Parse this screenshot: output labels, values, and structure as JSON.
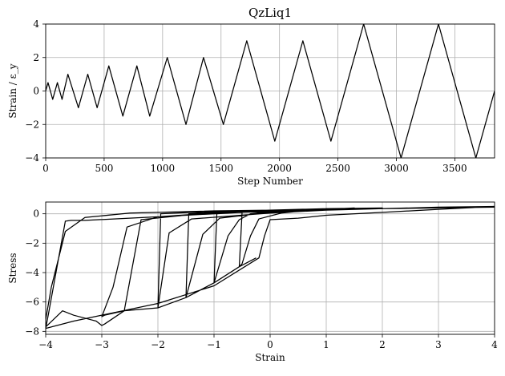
{
  "chart_data": [
    {
      "type": "line",
      "title": "QzLiq1",
      "xlabel": "Step Number",
      "ylabel": "Strain / ε_y",
      "xlim": [
        0,
        3840
      ],
      "ylim": [
        -4,
        4
      ],
      "xticks": [
        0,
        500,
        1000,
        1500,
        2000,
        2500,
        3000,
        3500
      ],
      "yticks": [
        -4,
        -2,
        0,
        2,
        4
      ],
      "grid": true,
      "series": [
        {
          "x": [
            0,
            20,
            60,
            100,
            140,
            190,
            280,
            360,
            440,
            540,
            660,
            780,
            890,
            1040,
            1200,
            1350,
            1520,
            1720,
            1960,
            2200,
            2440,
            2720,
            3040,
            3360,
            3680,
            3840
          ],
          "y": [
            0,
            0.5,
            -0.5,
            0.5,
            -0.5,
            1,
            -1,
            1,
            -1,
            1.5,
            -1.5,
            1.5,
            -1.5,
            2,
            -2,
            2,
            -2,
            3,
            -3,
            3,
            -3,
            4,
            -4,
            4,
            -4,
            0
          ]
        }
      ]
    },
    {
      "type": "line",
      "title": "",
      "xlabel": "Strain",
      "ylabel": "Stress",
      "xlim": [
        -4,
        4
      ],
      "ylim": [
        -8.2,
        0.8
      ],
      "xticks": [
        -4,
        -3,
        -2,
        -1,
        0,
        1,
        2,
        3,
        4
      ],
      "yticks": [
        -8,
        -6,
        -4,
        -2,
        0
      ],
      "grid": true,
      "series": [
        {
          "x": [
            -0.25,
            -0.4,
            -0.55,
            -0.5,
            -0.35,
            -0.2,
            0.2,
            0.6,
            1.0,
            1.0,
            0.5,
            -0.5,
            -0.55,
            -1.0,
            -1.0,
            -0.75,
            -0.55,
            -0.35,
            0,
            0.6,
            1.0,
            1.5,
            1.5,
            1.0,
            -0.5,
            -0.95,
            -1.0,
            -1.5,
            -1.5,
            -1.2,
            -0.9,
            0,
            1.0,
            2.0,
            2.0,
            1.0,
            -1.0,
            -1.45,
            -1.5,
            -2.0,
            -2.0,
            -1.8,
            -1.4,
            0,
            1.0,
            2.0,
            2.0,
            1.0,
            -1.4,
            -1.95,
            -2.0,
            -2.6,
            -2.95,
            -3.0,
            -2.8,
            -2.55,
            -2.0,
            -1.0,
            0,
            1.0,
            2.0,
            3.0,
            3.0,
            1.0,
            -1.0,
            -2.3,
            -2.6,
            -2.95,
            -3.0,
            -3.1,
            -3.2,
            -3.5,
            -3.7,
            -4.0,
            -4.0,
            -3.9,
            -3.65,
            -3.3,
            -2.5,
            -1.0,
            0,
            2.0,
            3.0,
            4.0,
            4.0,
            2.0,
            0,
            -2.0,
            -3.3,
            -3.55,
            -3.65,
            -3.95,
            -4.0,
            -3.5,
            -3.0,
            -2.0,
            -1.0,
            -0.2,
            -0.1,
            0,
            0.5,
            1.0,
            2.0,
            3.0,
            4.0
          ],
          "y": [
            -3.0,
            -3.3,
            -3.6,
            -3.4,
            -1.5,
            -0.35,
            0.05,
            0.2,
            0.35,
            0.3,
            0.25,
            0.1,
            -3.6,
            -4.7,
            -4.7,
            -1.5,
            -0.4,
            0.0,
            0.15,
            0.25,
            0.3,
            0.4,
            0.35,
            0.3,
            0.1,
            0.0,
            -4.7,
            -5.7,
            -5.7,
            -1.4,
            -0.3,
            0.1,
            0.25,
            0.35,
            0.4,
            0.35,
            0.1,
            0.0,
            -5.7,
            -6.4,
            -6.4,
            -1.3,
            -0.35,
            0.05,
            0.25,
            0.35,
            0.4,
            0.35,
            0.1,
            0.0,
            -6.4,
            -6.6,
            -6.9,
            -7.0,
            -5.0,
            -0.9,
            -0.2,
            0.05,
            0.15,
            0.25,
            0.35,
            0.45,
            0.4,
            0.3,
            0.1,
            -0.4,
            -6.6,
            -7.5,
            -7.6,
            -7.3,
            -7.2,
            -6.9,
            -6.6,
            -7.7,
            -7.2,
            -5.0,
            -1.2,
            -0.25,
            0.05,
            0.2,
            0.25,
            0.35,
            0.45,
            0.5,
            0.45,
            0.35,
            0.2,
            -0.2,
            -0.45,
            -0.45,
            -0.5,
            -6.8,
            -7.8,
            -7.3,
            -6.9,
            -6.1,
            -4.9,
            -3.0,
            -1.5,
            -0.4,
            -0.3,
            -0.1,
            0.1,
            0.3,
            0.5
          ]
        }
      ]
    }
  ]
}
